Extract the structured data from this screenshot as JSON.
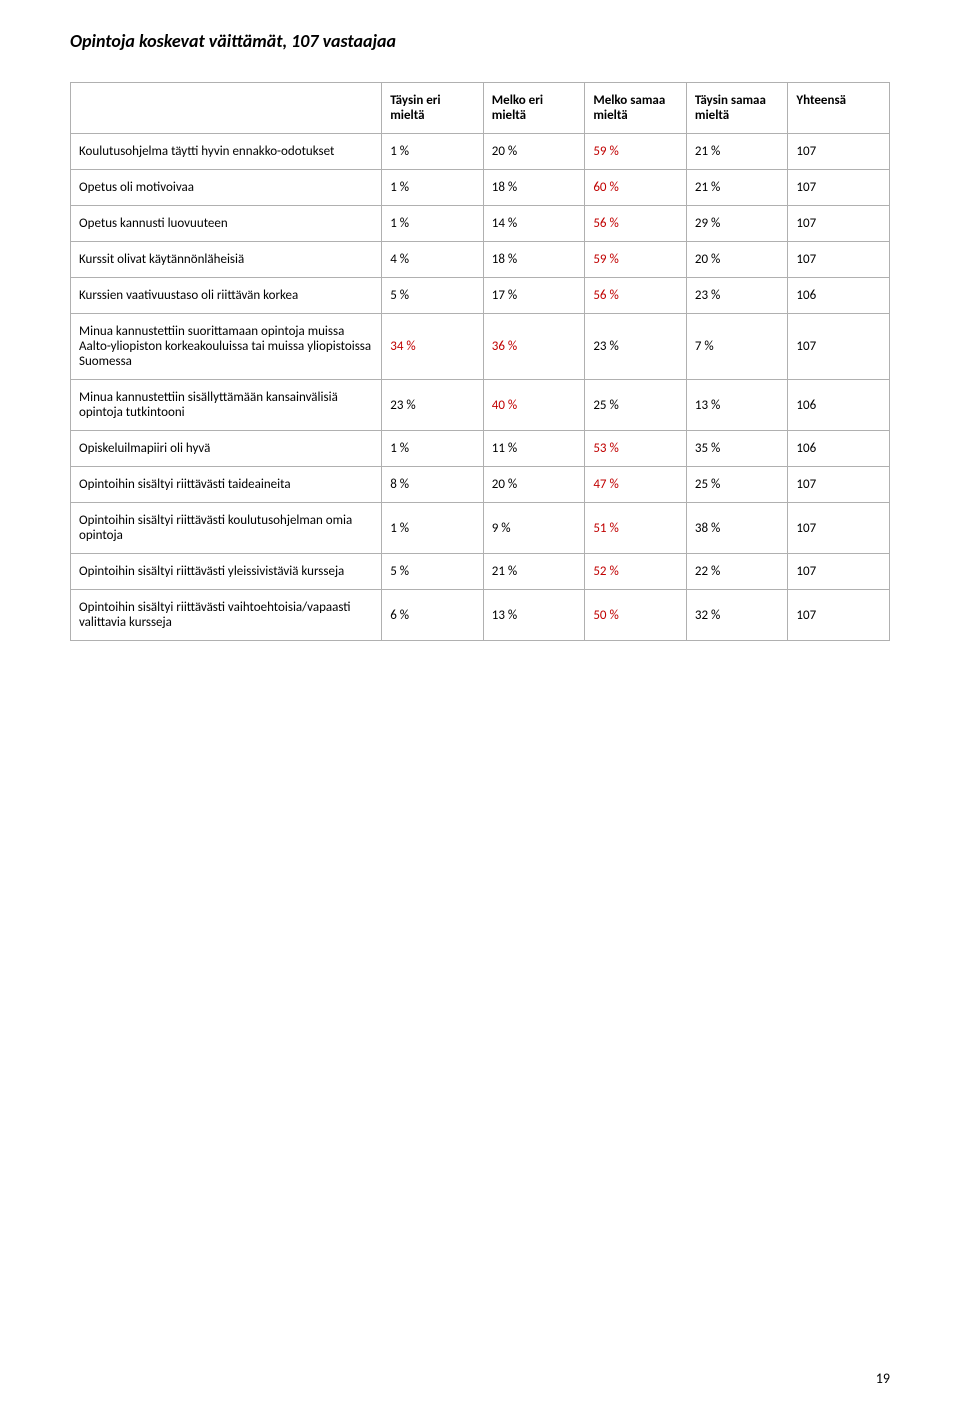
{
  "title": "Opintoja koskevat väittämät, 107 vastaajaa",
  "headers": [
    "",
    "Täysin eri mieltä",
    "Melko eri mieltä",
    "Melko samaa mieltä",
    "Täysin samaa mieltä",
    "Yhteensä"
  ],
  "rows": [
    {
      "label": "Koulutusohjelma täytti hyvin ennakko-odotukset",
      "cells": [
        {
          "v": "1 %",
          "red": false
        },
        {
          "v": "20 %",
          "red": false
        },
        {
          "v": "59 %",
          "red": true
        },
        {
          "v": "21 %",
          "red": false
        },
        {
          "v": "107",
          "red": false
        }
      ]
    },
    {
      "label": "Opetus oli motivoivaa",
      "cells": [
        {
          "v": "1 %",
          "red": false
        },
        {
          "v": "18 %",
          "red": false
        },
        {
          "v": "60 %",
          "red": true
        },
        {
          "v": "21 %",
          "red": false
        },
        {
          "v": "107",
          "red": false
        }
      ]
    },
    {
      "label": "Opetus kannusti luovuuteen",
      "cells": [
        {
          "v": "1 %",
          "red": false
        },
        {
          "v": "14 %",
          "red": false
        },
        {
          "v": "56 %",
          "red": true
        },
        {
          "v": "29 %",
          "red": false
        },
        {
          "v": "107",
          "red": false
        }
      ]
    },
    {
      "label": "Kurssit olivat käytännönläheisiä",
      "cells": [
        {
          "v": "4 %",
          "red": false
        },
        {
          "v": "18 %",
          "red": false
        },
        {
          "v": "59 %",
          "red": true
        },
        {
          "v": "20 %",
          "red": false
        },
        {
          "v": "107",
          "red": false
        }
      ]
    },
    {
      "label": "Kurssien vaativuustaso oli riittävän korkea",
      "cells": [
        {
          "v": "5 %",
          "red": false
        },
        {
          "v": "17 %",
          "red": false
        },
        {
          "v": "56 %",
          "red": true
        },
        {
          "v": "23 %",
          "red": false
        },
        {
          "v": "106",
          "red": false
        }
      ]
    },
    {
      "label": "Minua kannustettiin suorittamaan opintoja muissa Aalto-yliopiston korkeakouluissa tai muissa yliopistoissa Suomessa",
      "cells": [
        {
          "v": "34 %",
          "red": true
        },
        {
          "v": "36 %",
          "red": true
        },
        {
          "v": "23 %",
          "red": false
        },
        {
          "v": "7 %",
          "red": false
        },
        {
          "v": "107",
          "red": false
        }
      ]
    },
    {
      "label": "Minua kannustettiin sisällyttämään kansainvälisiä opintoja tutkintooni",
      "cells": [
        {
          "v": "23 %",
          "red": false
        },
        {
          "v": "40 %",
          "red": true
        },
        {
          "v": "25 %",
          "red": false
        },
        {
          "v": "13 %",
          "red": false
        },
        {
          "v": "106",
          "red": false
        }
      ]
    },
    {
      "label": "Opiskeluilmapiiri oli hyvä",
      "cells": [
        {
          "v": "1 %",
          "red": false
        },
        {
          "v": "11 %",
          "red": false
        },
        {
          "v": "53 %",
          "red": true
        },
        {
          "v": "35 %",
          "red": false
        },
        {
          "v": "106",
          "red": false
        }
      ]
    },
    {
      "label": "Opintoihin sisältyi riittävästi taideaineita",
      "cells": [
        {
          "v": "8 %",
          "red": false
        },
        {
          "v": "20 %",
          "red": false
        },
        {
          "v": "47 %",
          "red": true
        },
        {
          "v": "25 %",
          "red": false
        },
        {
          "v": "107",
          "red": false
        }
      ]
    },
    {
      "label": "Opintoihin sisältyi riittävästi koulutusohjelman omia opintoja",
      "cells": [
        {
          "v": "1 %",
          "red": false
        },
        {
          "v": "9 %",
          "red": false
        },
        {
          "v": "51 %",
          "red": true
        },
        {
          "v": "38 %",
          "red": false
        },
        {
          "v": "107",
          "red": false
        }
      ]
    },
    {
      "label": "Opintoihin sisältyi riittävästi yleissivistäviä kursseja",
      "cells": [
        {
          "v": "5 %",
          "red": false
        },
        {
          "v": "21 %",
          "red": false
        },
        {
          "v": "52 %",
          "red": true
        },
        {
          "v": "22 %",
          "red": false
        },
        {
          "v": "107",
          "red": false
        }
      ]
    },
    {
      "label": "Opintoihin sisältyi riittävästi vaihtoehtoisia/vapaasti valittavia kursseja",
      "cells": [
        {
          "v": "6 %",
          "red": false
        },
        {
          "v": "13 %",
          "red": false
        },
        {
          "v": "50 %",
          "red": true
        },
        {
          "v": "32 %",
          "red": false
        },
        {
          "v": "107",
          "red": false
        }
      ]
    }
  ],
  "pageNumber": "19"
}
